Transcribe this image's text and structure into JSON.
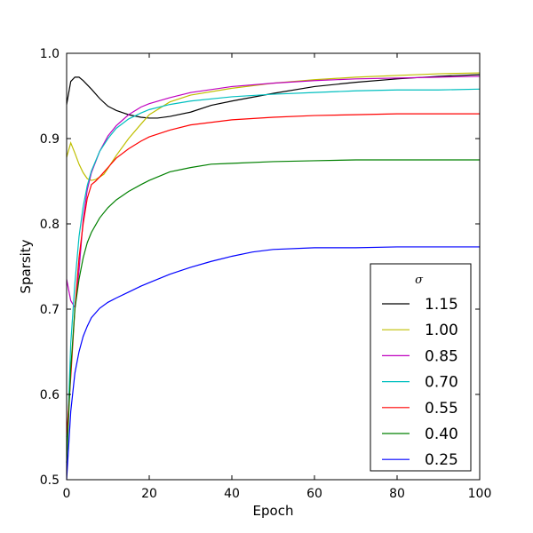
{
  "chart_data": {
    "type": "line",
    "xlabel": "Epoch",
    "ylabel": "Sparsity",
    "xlim": [
      0,
      100
    ],
    "ylim": [
      0.5,
      1.0
    ],
    "xticks": [
      "0",
      "20",
      "40",
      "60",
      "80",
      "100"
    ],
    "yticks": [
      "0.5",
      "0.6",
      "0.7",
      "0.8",
      "0.9",
      "1.0"
    ],
    "grid": false,
    "legend_title": "σ",
    "legend_position": "lower-right",
    "series": [
      {
        "name": "1.15",
        "color": "#000000",
        "x": [
          0,
          1,
          2,
          3,
          4,
          6,
          8,
          10,
          12,
          15,
          18,
          20,
          22,
          25,
          30,
          35,
          40,
          50,
          60,
          70,
          80,
          90,
          100
        ],
        "y": [
          0.94,
          0.967,
          0.972,
          0.972,
          0.968,
          0.958,
          0.947,
          0.938,
          0.933,
          0.928,
          0.925,
          0.924,
          0.924,
          0.926,
          0.931,
          0.939,
          0.944,
          0.953,
          0.961,
          0.966,
          0.97,
          0.973,
          0.975
        ]
      },
      {
        "name": "1.00",
        "color": "#bfbf00",
        "x": [
          0,
          1,
          2,
          3,
          4,
          5,
          6,
          7,
          8,
          9,
          10,
          12,
          15,
          18,
          20,
          25,
          30,
          40,
          50,
          60,
          70,
          80,
          90,
          100
        ],
        "y": [
          0.878,
          0.895,
          0.883,
          0.87,
          0.86,
          0.853,
          0.851,
          0.852,
          0.855,
          0.858,
          0.865,
          0.88,
          0.9,
          0.917,
          0.928,
          0.943,
          0.951,
          0.959,
          0.965,
          0.969,
          0.972,
          0.974,
          0.976,
          0.977
        ]
      },
      {
        "name": "0.85",
        "color": "#bf00bf",
        "x": [
          0,
          1,
          2,
          3,
          4,
          5,
          6,
          8,
          10,
          12,
          15,
          18,
          20,
          25,
          30,
          40,
          50,
          60,
          70,
          80,
          90,
          100
        ],
        "y": [
          0.735,
          0.71,
          0.702,
          0.745,
          0.805,
          0.84,
          0.86,
          0.885,
          0.903,
          0.915,
          0.928,
          0.937,
          0.941,
          0.948,
          0.954,
          0.961,
          0.965,
          0.968,
          0.97,
          0.971,
          0.972,
          0.973
        ]
      },
      {
        "name": "0.70",
        "color": "#00bfbf",
        "x": [
          0,
          1,
          2,
          3,
          4,
          5,
          6,
          8,
          10,
          12,
          15,
          18,
          20,
          25,
          30,
          40,
          50,
          60,
          70,
          80,
          90,
          100
        ],
        "y": [
          0.52,
          0.66,
          0.73,
          0.785,
          0.82,
          0.845,
          0.862,
          0.885,
          0.9,
          0.912,
          0.923,
          0.93,
          0.934,
          0.94,
          0.944,
          0.949,
          0.952,
          0.954,
          0.956,
          0.957,
          0.957,
          0.958
        ]
      },
      {
        "name": "0.55",
        "color": "#ff0000",
        "x": [
          0,
          1,
          2,
          3,
          4,
          5,
          6,
          7,
          8,
          10,
          12,
          15,
          18,
          20,
          25,
          30,
          40,
          50,
          60,
          70,
          80,
          90,
          100
        ],
        "y": [
          0.55,
          0.62,
          0.7,
          0.76,
          0.8,
          0.83,
          0.846,
          0.85,
          0.855,
          0.866,
          0.877,
          0.888,
          0.897,
          0.902,
          0.91,
          0.916,
          0.922,
          0.925,
          0.927,
          0.928,
          0.929,
          0.929,
          0.929
        ]
      },
      {
        "name": "0.40",
        "color": "#008000",
        "x": [
          0,
          1,
          2,
          3,
          4,
          5,
          6,
          8,
          10,
          12,
          15,
          18,
          20,
          25,
          30,
          35,
          40,
          50,
          60,
          70,
          80,
          90,
          100
        ],
        "y": [
          0.52,
          0.63,
          0.7,
          0.735,
          0.76,
          0.778,
          0.79,
          0.807,
          0.819,
          0.828,
          0.838,
          0.846,
          0.851,
          0.861,
          0.866,
          0.87,
          0.871,
          0.873,
          0.874,
          0.875,
          0.875,
          0.875,
          0.875
        ]
      },
      {
        "name": "0.25",
        "color": "#0000ff",
        "x": [
          0,
          1,
          2,
          3,
          4,
          5,
          6,
          8,
          10,
          12,
          15,
          18,
          20,
          25,
          30,
          35,
          40,
          45,
          50,
          60,
          70,
          80,
          90,
          100
        ],
        "y": [
          0.5,
          0.58,
          0.625,
          0.65,
          0.668,
          0.68,
          0.69,
          0.701,
          0.708,
          0.713,
          0.72,
          0.727,
          0.731,
          0.741,
          0.749,
          0.756,
          0.762,
          0.767,
          0.77,
          0.772,
          0.772,
          0.773,
          0.773,
          0.773
        ]
      }
    ]
  }
}
